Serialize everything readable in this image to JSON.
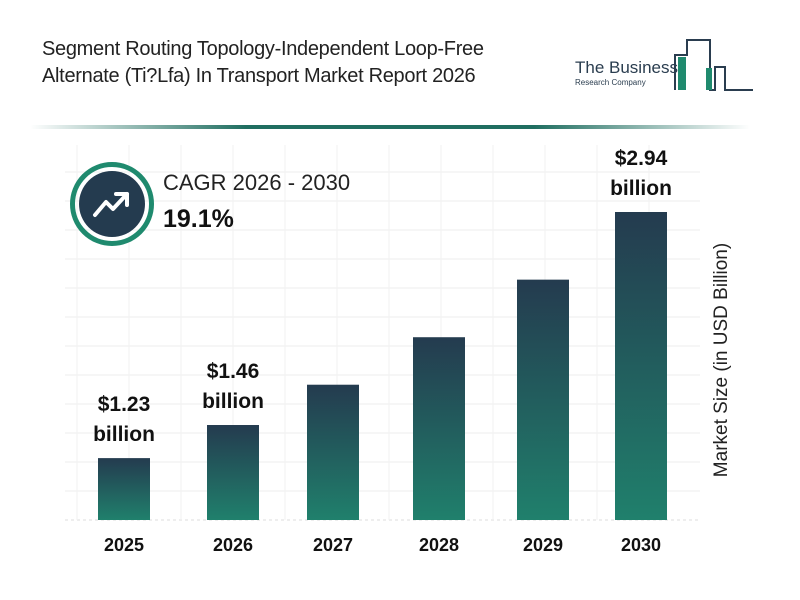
{
  "title": "Segment Routing Topology-Independent Loop-Free Alternate (Ti?Lfa) In Transport Market Report 2026",
  "logo": {
    "line1": "The Business",
    "line2": "Research Company"
  },
  "cagr": {
    "label": "CAGR 2026 - 2030",
    "value": "19.1%",
    "icon": "trending-up-icon"
  },
  "colors": {
    "bar_top": "#243b4f",
    "bar_bottom": "#20806c",
    "accent": "#1f8a6e"
  },
  "chart_data": {
    "type": "bar",
    "title": "Segment Routing Topology-Independent Loop-Free Alternate (Ti?Lfa) In Transport Market Report 2026",
    "categories": [
      "2025",
      "2026",
      "2027",
      "2028",
      "2029",
      "2030"
    ],
    "values": [
      1.23,
      1.46,
      1.74,
      2.07,
      2.47,
      2.94
    ],
    "ylabel": "Market Size (in USD Billion)",
    "xlabel": "",
    "ylim": [
      0.8,
      2.94
    ],
    "grid": true,
    "data_labels": [
      {
        "category": "2025",
        "line1": "$1.23",
        "line2": "billion"
      },
      {
        "category": "2026",
        "line1": "$1.46",
        "line2": "billion"
      },
      {
        "category": "2030",
        "line1": "$2.94",
        "line2": "billion"
      }
    ]
  }
}
